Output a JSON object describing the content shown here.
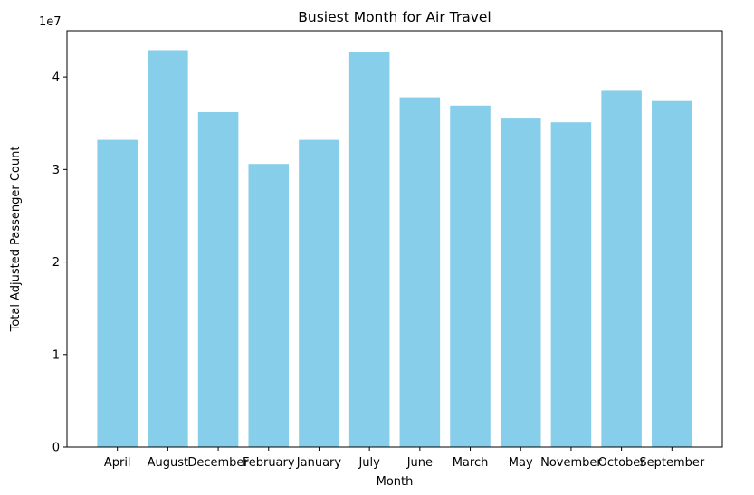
{
  "chart_data": {
    "type": "bar",
    "title": "Busiest Month for Air Travel",
    "xlabel": "Month",
    "ylabel": "Total Adjusted Passenger Count",
    "offset_label": "1e7",
    "categories": [
      "April",
      "August",
      "December",
      "February",
      "January",
      "July",
      "June",
      "March",
      "May",
      "November",
      "October",
      "September"
    ],
    "values": [
      33200000,
      42900000,
      36200000,
      30600000,
      33200000,
      42700000,
      37800000,
      36900000,
      35600000,
      35100000,
      38500000,
      37400000
    ],
    "ylim": [
      0,
      45000000
    ],
    "yticks": [
      0,
      10000000,
      20000000,
      30000000,
      40000000
    ],
    "ytick_labels": [
      "0",
      "1",
      "2",
      "3",
      "4"
    ],
    "bar_color": "#87ceeb",
    "grid": false,
    "legend": "none"
  }
}
